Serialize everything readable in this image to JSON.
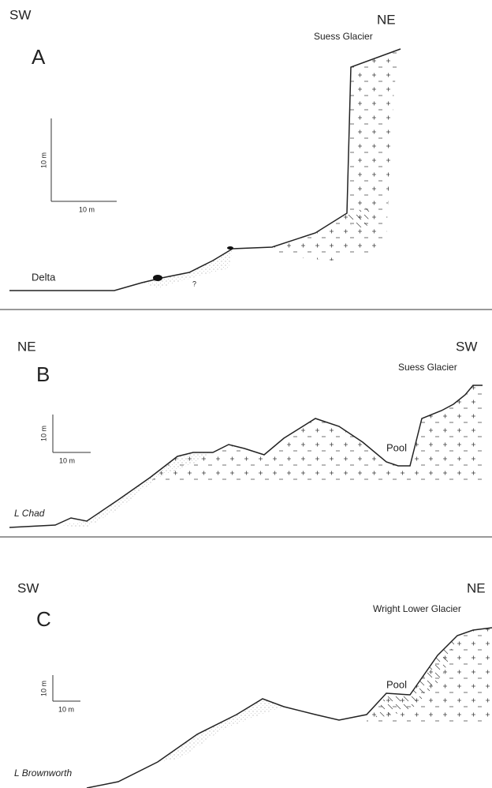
{
  "panels": [
    {
      "left": "SW",
      "right": "NE",
      "letter": "A",
      "glacier": "Suess Glacier",
      "scale_y": "10 m",
      "scale_x": "10 m",
      "labels": [
        "Delta",
        "?"
      ]
    },
    {
      "left": "NE",
      "right": "SW",
      "letter": "B",
      "glacier": "Suess Glacier",
      "scale_y": "10 m",
      "scale_x": "10 m",
      "labels": [
        "Pool",
        "L Chad"
      ]
    },
    {
      "left": "SW",
      "right": "NE",
      "letter": "C",
      "glacier": "Wright Lower Glacier",
      "scale_y": "10 m",
      "scale_x": "10 m",
      "labels": [
        "Pool",
        "L Brownworth"
      ]
    }
  ]
}
